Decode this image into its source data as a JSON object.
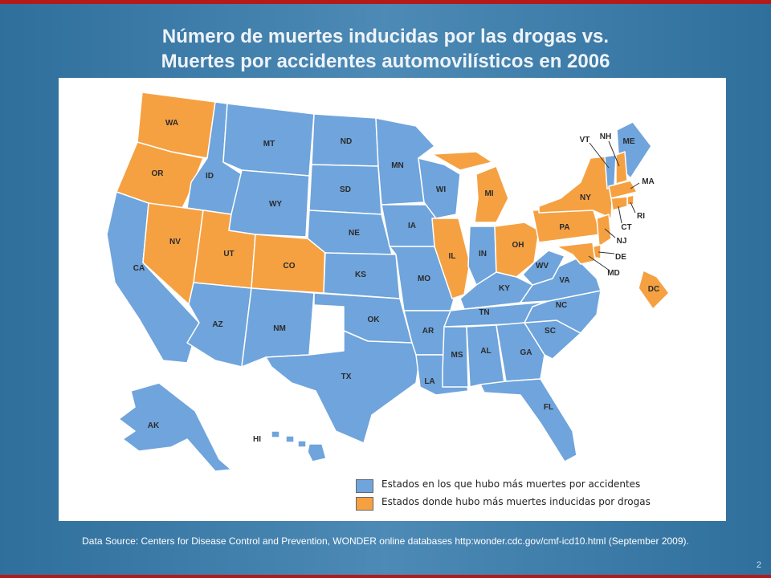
{
  "title": {
    "line1": "Número de muertes inducidas por las drogas vs.",
    "line2": "Muertes por accidentes automovilísticos en 2006"
  },
  "colors": {
    "traffic": "#6fa4dc",
    "drug": "#f5a142",
    "title": "#eef3f8",
    "accent": "#b31b1b"
  },
  "legend": {
    "traffic_label": "Estados en los que hubo más muertes por accidentes",
    "drug_label": "Estados donde hubo más muertes inducidas por drogas"
  },
  "states": [
    {
      "code": "WA",
      "category": "drug"
    },
    {
      "code": "OR",
      "category": "drug"
    },
    {
      "code": "CA",
      "category": "traffic"
    },
    {
      "code": "ID",
      "category": "traffic"
    },
    {
      "code": "NV",
      "category": "drug"
    },
    {
      "code": "UT",
      "category": "drug"
    },
    {
      "code": "AZ",
      "category": "traffic"
    },
    {
      "code": "MT",
      "category": "traffic"
    },
    {
      "code": "WY",
      "category": "traffic"
    },
    {
      "code": "CO",
      "category": "drug"
    },
    {
      "code": "NM",
      "category": "traffic"
    },
    {
      "code": "ND",
      "category": "traffic"
    },
    {
      "code": "SD",
      "category": "traffic"
    },
    {
      "code": "NE",
      "category": "traffic"
    },
    {
      "code": "KS",
      "category": "traffic"
    },
    {
      "code": "OK",
      "category": "traffic"
    },
    {
      "code": "TX",
      "category": "traffic"
    },
    {
      "code": "MN",
      "category": "traffic"
    },
    {
      "code": "IA",
      "category": "traffic"
    },
    {
      "code": "MO",
      "category": "traffic"
    },
    {
      "code": "AR",
      "category": "traffic"
    },
    {
      "code": "LA",
      "category": "traffic"
    },
    {
      "code": "WI",
      "category": "traffic"
    },
    {
      "code": "IL",
      "category": "drug"
    },
    {
      "code": "MI",
      "category": "drug"
    },
    {
      "code": "IN",
      "category": "traffic"
    },
    {
      "code": "OH",
      "category": "drug"
    },
    {
      "code": "KY",
      "category": "traffic"
    },
    {
      "code": "TN",
      "category": "traffic"
    },
    {
      "code": "MS",
      "category": "traffic"
    },
    {
      "code": "AL",
      "category": "traffic"
    },
    {
      "code": "GA",
      "category": "traffic"
    },
    {
      "code": "FL",
      "category": "traffic"
    },
    {
      "code": "SC",
      "category": "traffic"
    },
    {
      "code": "NC",
      "category": "traffic"
    },
    {
      "code": "VA",
      "category": "traffic"
    },
    {
      "code": "WV",
      "category": "traffic"
    },
    {
      "code": "PA",
      "category": "drug"
    },
    {
      "code": "NY",
      "category": "drug"
    },
    {
      "code": "ME",
      "category": "traffic"
    },
    {
      "code": "VT",
      "category": "traffic"
    },
    {
      "code": "NH",
      "category": "drug"
    },
    {
      "code": "MA",
      "category": "drug"
    },
    {
      "code": "RI",
      "category": "drug"
    },
    {
      "code": "CT",
      "category": "drug"
    },
    {
      "code": "NJ",
      "category": "drug"
    },
    {
      "code": "DE",
      "category": "drug"
    },
    {
      "code": "MD",
      "category": "drug"
    },
    {
      "code": "DC",
      "category": "drug"
    },
    {
      "code": "AK",
      "category": "traffic"
    },
    {
      "code": "HI",
      "category": "traffic"
    }
  ],
  "source": "Data Source: Centers for Disease Control and Prevention,  WONDER online databases http:wonder.cdc.gov/cmf-icd10.html (September 2009).",
  "page_number": "2"
}
